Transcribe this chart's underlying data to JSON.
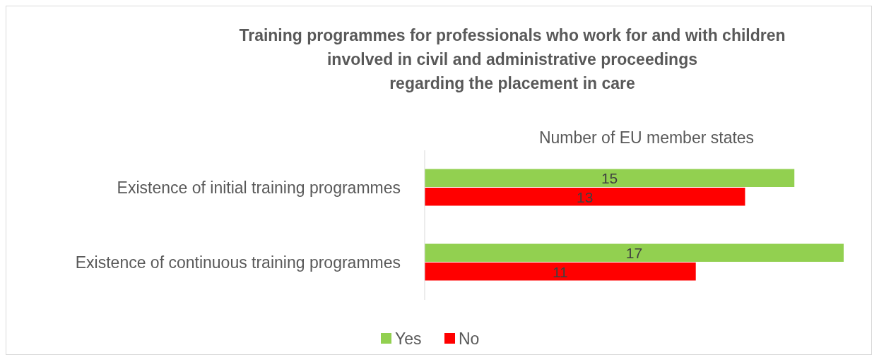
{
  "chart_data": {
    "type": "bar",
    "orientation": "horizontal",
    "title": "Training programmes for professionals who work for and with children\ninvolved in civil and administrative proceedings\nregarding the placement in care",
    "xlabel": "Number of EU member states",
    "categories": [
      "Existence of initial training programmes",
      "Existence of continuous training programmes"
    ],
    "series": [
      {
        "name": "Yes",
        "color": "#92d050",
        "values": [
          15,
          17
        ]
      },
      {
        "name": "No",
        "color": "#ff0000",
        "values": [
          13,
          11
        ]
      }
    ],
    "xlim": [
      0,
      17
    ],
    "data_labels": true,
    "legend": "bottom",
    "tick_labels": "y"
  }
}
